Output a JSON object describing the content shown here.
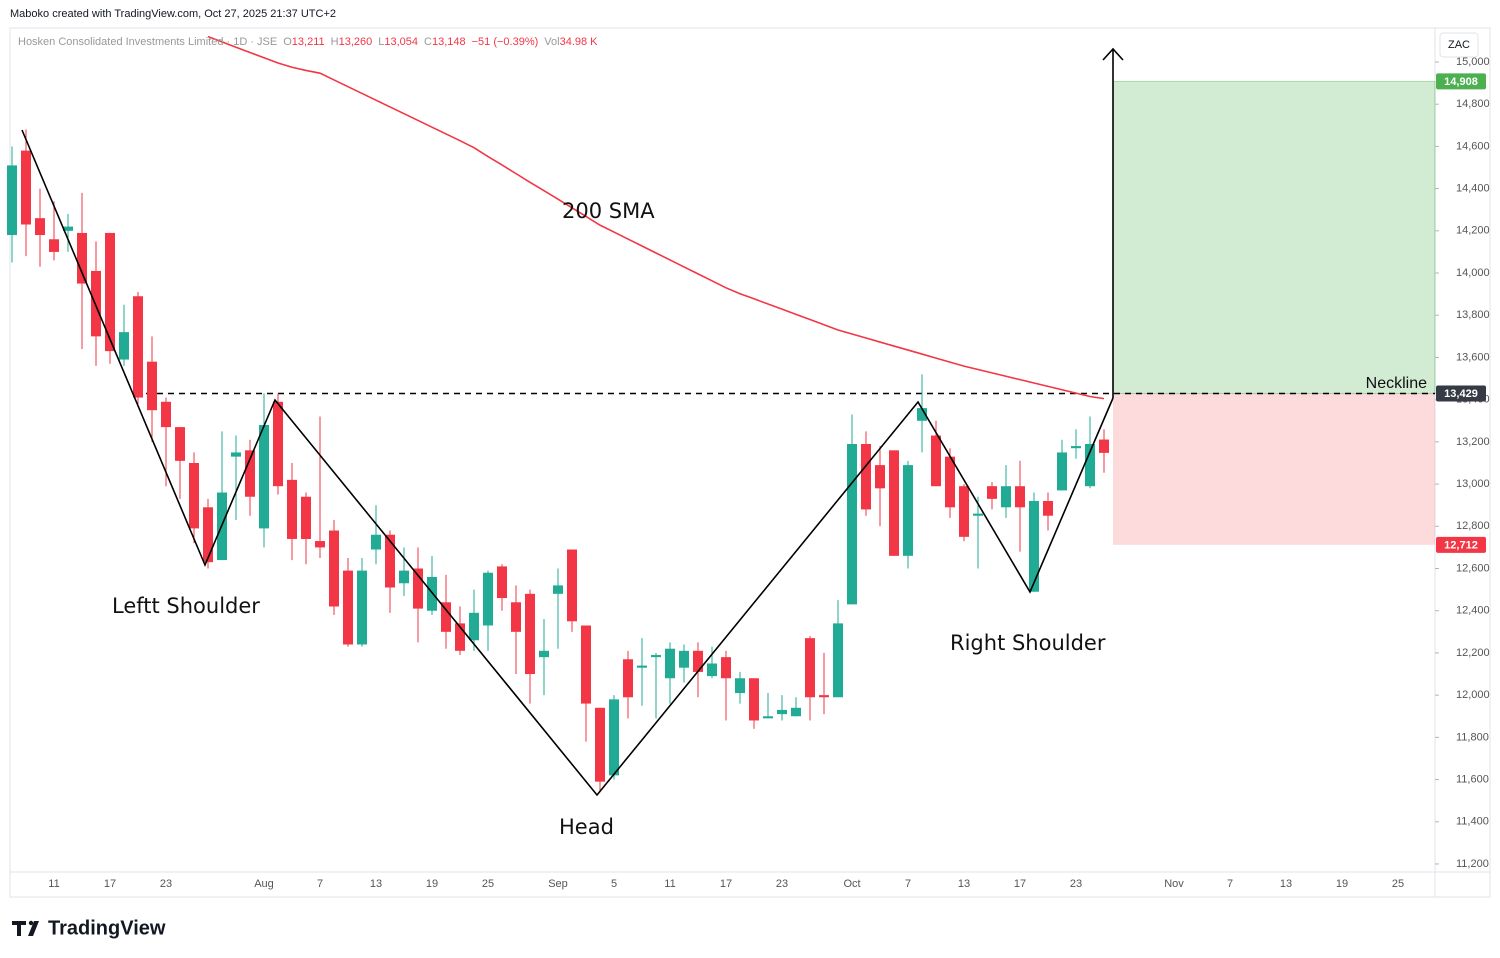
{
  "chart_data": {
    "type": "candlestick",
    "credit": "Maboko created with TradingView.com, Oct 27, 2025 21:37 UTC+2",
    "header": {
      "title": "Hosken Consolidated Investments Limited · 1D · JSE",
      "ohlc": [
        {
          "label": "O",
          "value": "13,211"
        },
        {
          "label": "H",
          "value": "13,260"
        },
        {
          "label": "L",
          "value": "13,054"
        },
        {
          "label": "C",
          "value": "13,148"
        }
      ],
      "change": "−51 (−0.39%)",
      "volume": {
        "label": "Vol",
        "value": "34.98 K"
      }
    },
    "currency": "ZAC",
    "logo": "TradingView",
    "annotations": {
      "sma": "200 SMA",
      "left_shoulder": "Leftt Shoulder",
      "head": "Head",
      "right_shoulder": "Right Shoulder",
      "neckline": "Neckline"
    },
    "up_color": "#22ab94",
    "down_color": "#f23645",
    "categories": [
      null,
      null,
      null,
      "11",
      null,
      null,
      null,
      "17",
      null,
      null,
      null,
      "23",
      null,
      null,
      null,
      null,
      null,
      null,
      "Aug",
      null,
      null,
      null,
      "7",
      null,
      null,
      null,
      "13",
      null,
      null,
      null,
      "19",
      null,
      null,
      null,
      "25",
      null,
      null,
      null,
      null,
      "Sep",
      null,
      null,
      null,
      "5",
      null,
      null,
      null,
      "11",
      null,
      null,
      null,
      "17",
      null,
      null,
      null,
      "23",
      null,
      null,
      null,
      null,
      "Oct",
      null,
      null,
      null,
      "7",
      null,
      null,
      null,
      "13",
      null,
      null,
      null,
      "17",
      null,
      null,
      null,
      "23",
      null,
      null,
      null,
      null,
      null,
      null,
      "Nov",
      null,
      null,
      null,
      "7",
      null,
      null,
      null,
      "13",
      null,
      null,
      null,
      "19",
      null,
      null,
      null,
      "25",
      null,
      null
    ],
    "open": [
      14180,
      14580,
      14260,
      14160,
      14200,
      14190,
      14010,
      14190,
      13590,
      13890,
      13580,
      13390,
      13270,
      13100,
      12890,
      12640,
      13130,
      13160,
      12790,
      13390,
      13020,
      12940,
      12730,
      12780,
      12590,
      12240,
      12690,
      12760,
      12530,
      12600,
      12400,
      12440,
      12340,
      12260,
      12330,
      12610,
      12440,
      12480,
      12180,
      12480,
      12690,
      12330,
      11940,
      11620,
      12170,
      12130,
      12180,
      12080,
      12130,
      12210,
      12090,
      12180,
      12010,
      12080,
      11890,
      11910,
      11900,
      12270,
      12000,
      11990,
      12430,
      13190,
      13090,
      13160,
      12660,
      13300,
      13230,
      13130,
      12990,
      12850,
      12990,
      12890,
      12990,
      12490,
      12920,
      12970,
      13170,
      12990,
      13211,
      null,
      null,
      null,
      null,
      null,
      null,
      null,
      null,
      null,
      null,
      null,
      null,
      null,
      null,
      null,
      null,
      null,
      null,
      null,
      null,
      null,
      null,
      null
    ],
    "high": [
      14600,
      14680,
      14400,
      14340,
      14280,
      14380,
      14150,
      14190,
      13850,
      13910,
      13700,
      13410,
      13270,
      13150,
      12930,
      13250,
      13230,
      13210,
      13430,
      13430,
      13100,
      12960,
      13320,
      12830,
      12650,
      12650,
      12900,
      12780,
      12700,
      12700,
      12660,
      12570,
      12420,
      12500,
      12590,
      12620,
      12520,
      12500,
      12360,
      12600,
      12690,
      12330,
      11940,
      12000,
      12210,
      12270,
      12200,
      12250,
      12240,
      12250,
      12230,
      12210,
      12110,
      12080,
      12010,
      12000,
      11990,
      12280,
      12200,
      12450,
      13330,
      13250,
      13180,
      13160,
      13110,
      13520,
      13300,
      13170,
      13000,
      12940,
      13010,
      13090,
      13110,
      12960,
      12960,
      13210,
      13260,
      13320,
      13260,
      null,
      null,
      null,
      null,
      null,
      null,
      null,
      null,
      null,
      null,
      null,
      null,
      null,
      null,
      null,
      null,
      null,
      null,
      null,
      null,
      null,
      null,
      null
    ],
    "low": [
      14050,
      14080,
      14030,
      14060,
      14100,
      13640,
      13560,
      13570,
      13560,
      13380,
      13200,
      12990,
      12930,
      12720,
      12600,
      12640,
      12830,
      12850,
      12700,
      12950,
      12640,
      12620,
      12650,
      12380,
      12230,
      12230,
      12620,
      12390,
      12470,
      12250,
      12380,
      12220,
      12190,
      12210,
      12210,
      12400,
      12100,
      11960,
      12000,
      12220,
      12300,
      11780,
      11540,
      11600,
      11890,
      11950,
      11890,
      11960,
      12060,
      11990,
      12080,
      11880,
      11960,
      11840,
      11890,
      11880,
      11900,
      11880,
      11910,
      11990,
      12430,
      12850,
      12800,
      12660,
      12600,
      13150,
      12990,
      12840,
      12730,
      12600,
      12880,
      12840,
      12680,
      12490,
      12780,
      12970,
      13120,
      12980,
      13054,
      null,
      null,
      null,
      null,
      null,
      null,
      null,
      null,
      null,
      null,
      null,
      null,
      null,
      null,
      null,
      null,
      null,
      null,
      null,
      null,
      null,
      null,
      null
    ],
    "close": [
      14510,
      14230,
      14180,
      14100,
      14220,
      13950,
      13700,
      13630,
      13720,
      13410,
      13350,
      13270,
      13110,
      12790,
      12630,
      12960,
      13150,
      12940,
      13280,
      12990,
      12740,
      12740,
      12700,
      12420,
      12240,
      12590,
      12760,
      12510,
      12590,
      12410,
      12560,
      12300,
      12210,
      12390,
      12580,
      12460,
      12300,
      12100,
      12210,
      12520,
      12350,
      11960,
      11590,
      11980,
      11990,
      12140,
      12190,
      12220,
      12210,
      12110,
      12150,
      12080,
      12080,
      11880,
      11900,
      11930,
      11940,
      11990,
      11990,
      12340,
      13190,
      12880,
      12980,
      12660,
      13090,
      13360,
      12990,
      12890,
      12750,
      12860,
      12930,
      12990,
      12890,
      12920,
      12850,
      13150,
      13180,
      13190,
      13148,
      null,
      null,
      null,
      null,
      null,
      null,
      null,
      null,
      null,
      null,
      null,
      null,
      null,
      null,
      null,
      null,
      null,
      null,
      null,
      null,
      null,
      null,
      null
    ],
    "sma": {
      "color": "#f23645",
      "values": [
        null,
        null,
        null,
        null,
        null,
        null,
        null,
        null,
        null,
        null,
        null,
        null,
        null,
        null,
        15120,
        15095,
        15070,
        15045,
        15020,
        14995,
        14975,
        14960,
        14947,
        14915,
        14883,
        14851,
        14819,
        14787,
        14755,
        14723,
        14691,
        14659,
        14627,
        14594,
        14552,
        14512,
        14471,
        14430,
        14390,
        14350,
        14309,
        14268,
        14227,
        14194,
        14161,
        14128,
        14095,
        14062,
        14029,
        13996,
        13963,
        13930,
        13902,
        13878,
        13853,
        13829,
        13804,
        13780,
        13755,
        13730,
        13711,
        13692,
        13673,
        13654,
        13635,
        13616,
        13597,
        13578,
        13559,
        13543,
        13527,
        13511,
        13495,
        13479,
        13463,
        13447,
        13431,
        13415,
        13405,
        null,
        null,
        null,
        null,
        null,
        null,
        null,
        null,
        null,
        null,
        null,
        null,
        null,
        null,
        null,
        null,
        null,
        null,
        null,
        null,
        null,
        null,
        null
      ]
    },
    "price_levels": [
      {
        "value": 14908,
        "label": "14,908",
        "color": "#4caf50"
      },
      {
        "value": 13429,
        "label": "13,429",
        "color": "#363a45"
      },
      {
        "value": 12712,
        "label": "12,712",
        "color": "#f23645"
      }
    ],
    "ylim": [
      11162,
      15161
    ],
    "yticks": [
      {
        "value": 11200,
        "label": "11,200"
      },
      {
        "value": 11400,
        "label": "11,400"
      },
      {
        "value": 11600,
        "label": "11,600"
      },
      {
        "value": 11800,
        "label": "11,800"
      },
      {
        "value": 12000,
        "label": "12,000"
      },
      {
        "value": 12200,
        "label": "12,200"
      },
      {
        "value": 12400,
        "label": "12,400"
      },
      {
        "value": 12600,
        "label": "12,600"
      },
      {
        "value": 12800,
        "label": "12,800"
      },
      {
        "value": 13000,
        "label": "13,000"
      },
      {
        "value": 13200,
        "label": "13,200"
      },
      {
        "value": 13400,
        "label": "13,400"
      },
      {
        "value": 13600,
        "label": "13,600"
      },
      {
        "value": 13800,
        "label": "13,800"
      },
      {
        "value": 14000,
        "label": "14,000"
      },
      {
        "value": 14200,
        "label": "14,200"
      },
      {
        "value": 14400,
        "label": "14,400"
      },
      {
        "value": 14600,
        "label": "14,600"
      },
      {
        "value": 14800,
        "label": "14,800"
      },
      {
        "value": 15000,
        "label": "15,000"
      }
    ]
  }
}
